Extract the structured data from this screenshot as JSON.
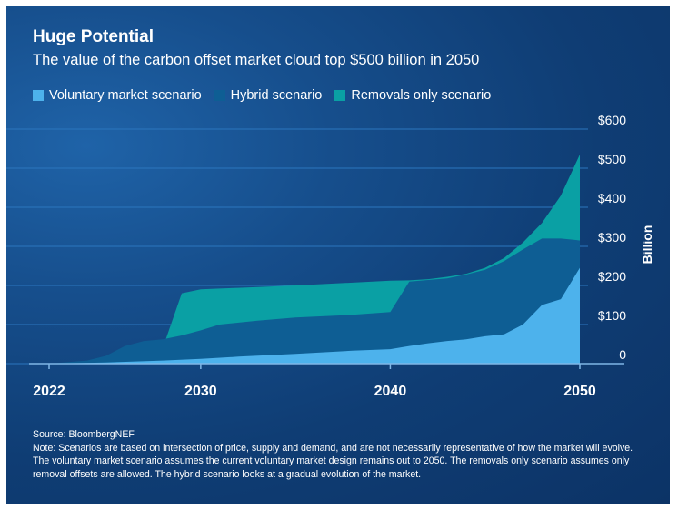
{
  "chart_data": {
    "type": "area",
    "title": "Huge Potential",
    "subtitle": "The value of the carbon offset market cloud top $500 billion in 2050",
    "ylabel": "Billion",
    "xlim": [
      2022,
      2050
    ],
    "ylim": [
      0,
      600
    ],
    "x_ticks": [
      "2022",
      "2030",
      "2040",
      "2050"
    ],
    "y_ticks": [
      "0",
      "$100",
      "$200",
      "$300",
      "$400",
      "$500",
      "$600"
    ],
    "grid": true,
    "legend_position": "top-left",
    "series": [
      {
        "name": "Removals only scenario",
        "color": "#0aa0a4",
        "x": [
          2022,
          2024,
          2026,
          2027,
          2028,
          2029,
          2030,
          2031,
          2032,
          2035,
          2040,
          2041,
          2042,
          2043,
          2044,
          2045,
          2046,
          2047,
          2048,
          2049,
          2050
        ],
        "y": [
          0,
          2,
          5,
          15,
          40,
          180,
          190,
          192,
          194,
          200,
          212,
          213,
          216,
          222,
          230,
          245,
          270,
          310,
          360,
          430,
          535
        ]
      },
      {
        "name": "Hybrid scenario",
        "color": "#0e5e94",
        "x": [
          2022,
          2024,
          2025,
          2026,
          2027,
          2028,
          2029,
          2030,
          2031,
          2033,
          2035,
          2038,
          2040,
          2041,
          2042,
          2043,
          2044,
          2045,
          2046,
          2047,
          2048,
          2049,
          2050
        ],
        "y": [
          0,
          8,
          20,
          45,
          58,
          62,
          72,
          85,
          100,
          110,
          118,
          125,
          132,
          210,
          214,
          218,
          228,
          240,
          262,
          292,
          320,
          320,
          315
        ]
      },
      {
        "name": "Voluntary market scenario",
        "color": "#4db2ec",
        "x": [
          2022,
          2025,
          2028,
          2030,
          2032,
          2035,
          2038,
          2040,
          2041,
          2042,
          2043,
          2044,
          2045,
          2046,
          2047,
          2048,
          2049,
          2050
        ],
        "y": [
          0,
          3,
          8,
          12,
          18,
          25,
          33,
          37,
          45,
          52,
          58,
          62,
          70,
          75,
          100,
          150,
          165,
          245
        ]
      }
    ]
  },
  "legend": {
    "items": [
      {
        "label": "Voluntary market scenario",
        "color": "#4db2ec"
      },
      {
        "label": "Hybrid scenario",
        "color": "#0e5e94"
      },
      {
        "label": "Removals only scenario",
        "color": "#0aa0a4"
      }
    ]
  },
  "footer": {
    "source": "Source: BloombergNEF",
    "note": "Note: Scenarios are based on intersection of price, supply and demand, and are not necessarily representative of how the market will evolve. The voluntary market scenario assumes the current voluntary market design remains out to 2050. The removals only scenario assumes only removal offsets are allowed. The hybrid scenario looks at a gradual evolution of the market."
  },
  "colors": {
    "background": "#0f3d74",
    "gridline": "#2b76be",
    "text": "#ffffff"
  }
}
